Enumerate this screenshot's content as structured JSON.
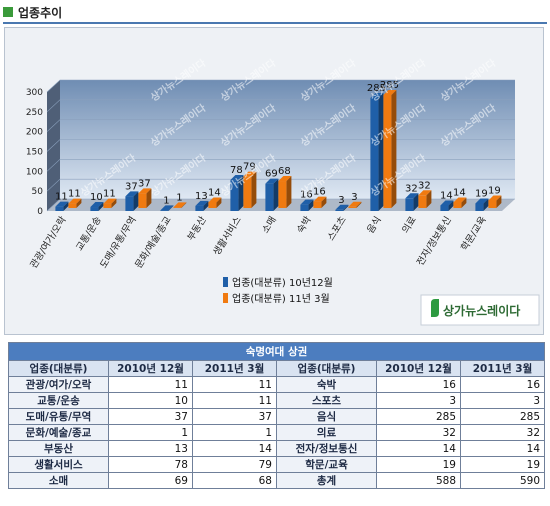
{
  "header": {
    "title": "업종추이"
  },
  "watermark": "상가뉴스레이다",
  "logo": {
    "text": "상가뉴스레이다"
  },
  "colors": {
    "series1": "#1f5fa8",
    "series2": "#f07a10",
    "accent": "#3a9a3a"
  },
  "chart_data": {
    "type": "bar",
    "three_d": true,
    "categories": [
      "관광/여가/오락",
      "교통/운송",
      "도매/유통/무역",
      "문화/예술/종교",
      "부동산",
      "생활서비스",
      "소매",
      "숙박",
      "스포츠",
      "음식",
      "의료",
      "전자/정보통신",
      "학문/교육"
    ],
    "series": [
      {
        "name": "업종(대분류) 10년12월",
        "values": [
          11,
          10,
          37,
          1,
          13,
          78,
          69,
          16,
          3,
          285,
          32,
          14,
          19
        ]
      },
      {
        "name": "업종(대분류) 11년 3월",
        "values": [
          11,
          11,
          37,
          1,
          14,
          79,
          68,
          16,
          3,
          285,
          32,
          14,
          19
        ]
      }
    ],
    "yticks": [
      0,
      50,
      100,
      150,
      200,
      250,
      300
    ],
    "ylim": [
      0,
      300
    ],
    "legend_position": "bottom-center",
    "grid": true
  },
  "table": {
    "caption": "숙명여대 상권",
    "headers": [
      "업종(대분류)",
      "2010년 12월",
      "2011년 3월",
      "업종(대분류)",
      "2010년 12월",
      "2011년 3월"
    ],
    "rows": [
      [
        "관광/여가/오락",
        "11",
        "11",
        "숙박",
        "16",
        "16"
      ],
      [
        "교통/운송",
        "10",
        "11",
        "스포츠",
        "3",
        "3"
      ],
      [
        "도매/유통/무역",
        "37",
        "37",
        "음식",
        "285",
        "285"
      ],
      [
        "문화/예술/종교",
        "1",
        "1",
        "의료",
        "32",
        "32"
      ],
      [
        "부동산",
        "13",
        "14",
        "전자/정보통신",
        "14",
        "14"
      ],
      [
        "생활서비스",
        "78",
        "79",
        "학문/교육",
        "19",
        "19"
      ],
      [
        "소매",
        "69",
        "68",
        "총계",
        "588",
        "590"
      ]
    ]
  }
}
